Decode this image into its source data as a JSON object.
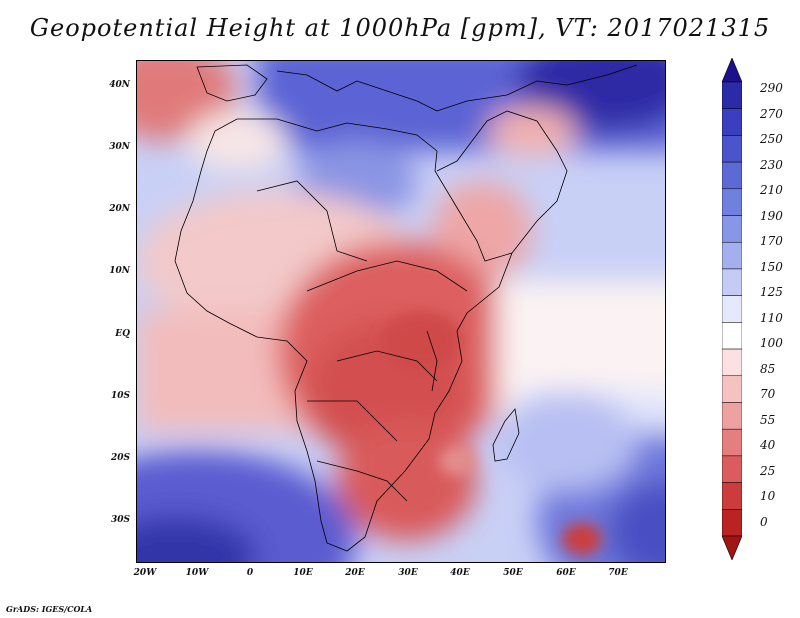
{
  "title": "Geopotential Height at 1000hPa [gpm], VT: 2017021315",
  "footer": "GrADS: IGES/COLA",
  "axes": {
    "lat_labels": [
      "40N",
      "30N",
      "20N",
      "10N",
      "EQ",
      "10S",
      "20S",
      "30S"
    ],
    "lon_labels": [
      "20W",
      "10W",
      "0",
      "10E",
      "20E",
      "30E",
      "40E",
      "50E",
      "60E",
      "70E"
    ]
  },
  "colorbar": {
    "levels": [
      "290",
      "270",
      "250",
      "230",
      "210",
      "190",
      "170",
      "150",
      "125",
      "110",
      "100",
      "85",
      "70",
      "55",
      "40",
      "25",
      "10",
      "0"
    ],
    "colors": [
      "#1e0f8c",
      "#2b2aa8",
      "#3a3fbf",
      "#4a55cc",
      "#5c6ad6",
      "#7080de",
      "#8796e6",
      "#a3afee",
      "#c4ccf5",
      "#e6e9fb",
      "#ffffff",
      "#fbe1e1",
      "#f5c2c2",
      "#eea1a1",
      "#e57e7e",
      "#da5c5c",
      "#cc3c3c",
      "#bb2222",
      "#a01414"
    ]
  },
  "chart_data": {
    "type": "heatmap",
    "title": "Geopotential Height at 1000hPa [gpm], VT: 2017021315",
    "variable": "Geopotential Height at 1000hPa",
    "units": "gpm",
    "valid_time": "2017021315",
    "lon_range": [
      -20,
      80
    ],
    "lat_range": [
      -37,
      44
    ],
    "x_ticks": [
      "20W",
      "10W",
      "0",
      "10E",
      "20E",
      "30E",
      "40E",
      "50E",
      "60E",
      "70E"
    ],
    "y_ticks": [
      "40N",
      "30N",
      "20N",
      "10N",
      "EQ",
      "10S",
      "20S",
      "30S"
    ],
    "contour_levels": [
      0,
      10,
      25,
      40,
      55,
      70,
      85,
      100,
      110,
      125,
      150,
      170,
      190,
      210,
      230,
      250,
      270,
      290
    ]
  }
}
